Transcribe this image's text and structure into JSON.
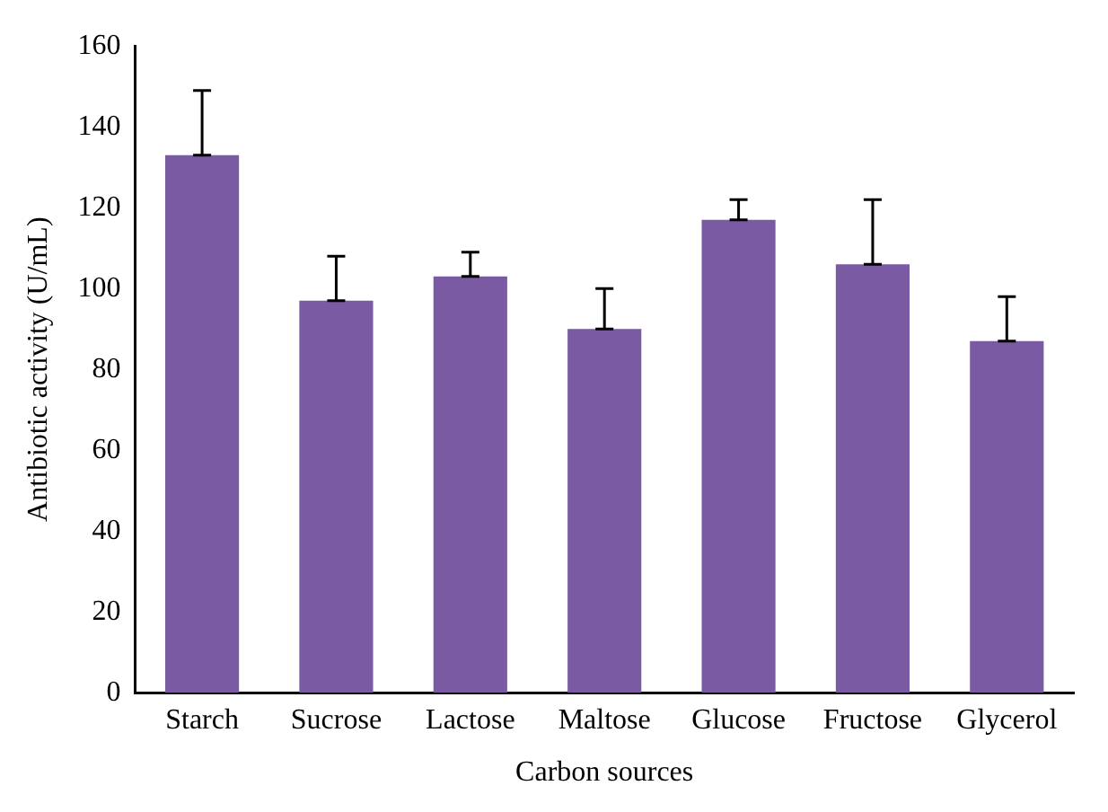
{
  "chart_data": {
    "type": "bar",
    "xlabel": "Carbon sources",
    "ylabel": "Antibiotic activity (U/mL)",
    "categories": [
      "Starch",
      "Sucrose",
      "Lactose",
      "Maltose",
      "Glucose",
      "Fructose",
      "Glycerol"
    ],
    "values": [
      133,
      97,
      103,
      90,
      117,
      106,
      87
    ],
    "errors": [
      [
        133,
        149
      ],
      [
        97,
        108
      ],
      [
        103,
        109
      ],
      [
        90,
        100
      ],
      [
        117,
        122
      ],
      [
        106,
        122
      ],
      [
        87,
        98
      ]
    ],
    "color": "#7a5aa3",
    "ylim": [
      0,
      160
    ],
    "yticks": [
      0,
      20,
      40,
      60,
      80,
      100,
      120,
      140,
      160
    ],
    "grid": false,
    "legend": false
  }
}
